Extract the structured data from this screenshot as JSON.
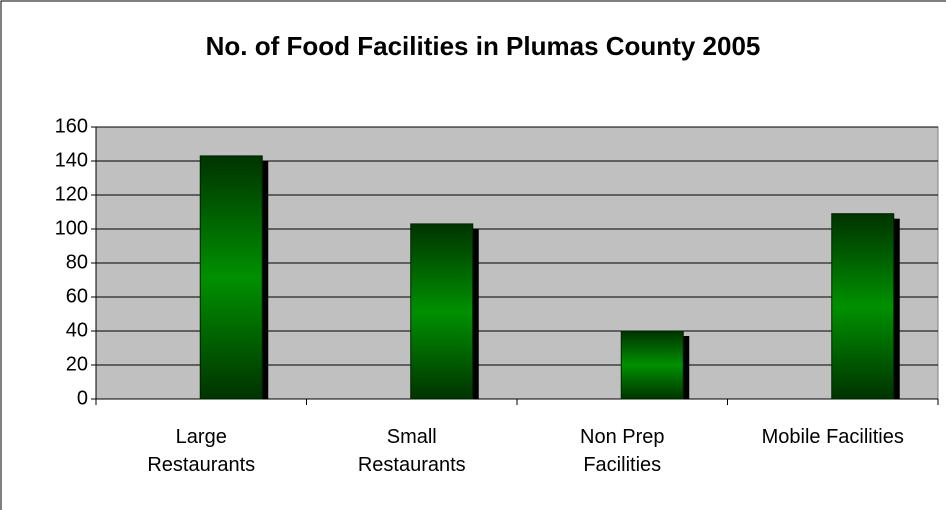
{
  "chart_data": {
    "type": "bar",
    "title": "No. of Food Facilities in Plumas County 2005",
    "categories": [
      "Large\nRestaurants",
      "Small\nRestaurants",
      "Non Prep\nFacilities",
      "Mobile Facilities"
    ],
    "values": [
      143,
      103,
      40,
      109
    ],
    "color": "#008000",
    "ylim": [
      0,
      160
    ],
    "yticks": [
      0,
      20,
      40,
      60,
      80,
      100,
      120,
      140,
      160
    ],
    "grid": true
  }
}
